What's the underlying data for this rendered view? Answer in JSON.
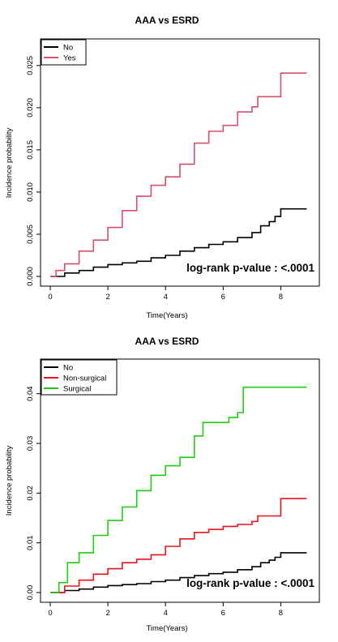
{
  "chart_data": [
    {
      "type": "line",
      "title": "AAA vs ESRD",
      "xlabel": "Time(Years)",
      "ylabel": "Incidence probability",
      "xlim": [
        0,
        9
      ],
      "ylim": [
        0,
        0.027
      ],
      "xticks": [
        0,
        2,
        4,
        6,
        8
      ],
      "xtick_labels": [
        "0",
        "2",
        "4",
        "6",
        "8"
      ],
      "yticks": [
        0,
        0.005,
        0.01,
        0.015,
        0.02,
        0.025
      ],
      "ytick_labels": [
        "0.000",
        "0.005",
        "0.010",
        "0.015",
        "0.020",
        "0.025"
      ],
      "legend_position": "top-left",
      "annotation": "log-rank p-value : <.0001",
      "series": [
        {
          "name": "No",
          "color": "#000000",
          "x": [
            0,
            0.5,
            1,
            1.5,
            2,
            2.5,
            3,
            3.5,
            4,
            4.5,
            5,
            5.5,
            6,
            6.5,
            7,
            7.3,
            7.6,
            7.8,
            8,
            8.9
          ],
          "y": [
            0,
            0.0004,
            0.0007,
            0.0011,
            0.0014,
            0.0016,
            0.0018,
            0.0022,
            0.0025,
            0.003,
            0.0034,
            0.0038,
            0.0041,
            0.0046,
            0.0052,
            0.006,
            0.0065,
            0.0071,
            0.008,
            0.008
          ]
        },
        {
          "name": "Yes",
          "color": "#d45068",
          "x": [
            0,
            0.2,
            0.5,
            1,
            1.5,
            2,
            2.5,
            3,
            3.5,
            4,
            4.5,
            5,
            5.5,
            6,
            6.5,
            7,
            7.2,
            7.9,
            8,
            8.9
          ],
          "y": [
            0,
            0.0007,
            0.0015,
            0.003,
            0.0043,
            0.0058,
            0.0078,
            0.0095,
            0.0108,
            0.0118,
            0.0133,
            0.0158,
            0.0172,
            0.0179,
            0.0195,
            0.0201,
            0.0213,
            0.0213,
            0.0241,
            0.0241
          ]
        }
      ]
    },
    {
      "type": "line",
      "title": "AAA vs ESRD",
      "xlabel": "Time(Years)",
      "ylabel": "Incidence probability",
      "xlim": [
        0,
        9
      ],
      "ylim": [
        0,
        0.045
      ],
      "xticks": [
        0,
        2,
        4,
        6,
        8
      ],
      "xtick_labels": [
        "0",
        "2",
        "4",
        "6",
        "8"
      ],
      "yticks": [
        0,
        0.01,
        0.02,
        0.03,
        0.04
      ],
      "ytick_labels": [
        "0.00",
        "0.01",
        "0.02",
        "0.03",
        "0.04"
      ],
      "legend_position": "top-left",
      "annotation": "log-rank p-value : <.0001",
      "series": [
        {
          "name": "No",
          "color": "#000000",
          "x": [
            0,
            0.5,
            1,
            1.5,
            2,
            2.5,
            3,
            3.5,
            4,
            4.5,
            5,
            5.5,
            6,
            6.5,
            7,
            7.3,
            7.6,
            7.8,
            8,
            8.9
          ],
          "y": [
            0,
            0.0004,
            0.0007,
            0.0011,
            0.0014,
            0.0016,
            0.0018,
            0.0022,
            0.0025,
            0.003,
            0.0034,
            0.0038,
            0.0041,
            0.0046,
            0.0052,
            0.006,
            0.0065,
            0.0071,
            0.008,
            0.008
          ]
        },
        {
          "name": "Non-surgical",
          "color": "#e8141c",
          "x": [
            0,
            0.5,
            1,
            1.5,
            2,
            2.5,
            3,
            3.5,
            4,
            4.5,
            5,
            5.5,
            6,
            6.5,
            7,
            7.2,
            7.9,
            8,
            8.9
          ],
          "y": [
            0,
            0.0013,
            0.0025,
            0.0037,
            0.0048,
            0.006,
            0.0067,
            0.0076,
            0.0093,
            0.0108,
            0.0121,
            0.0127,
            0.0133,
            0.0137,
            0.0143,
            0.0154,
            0.0154,
            0.0189,
            0.0189
          ]
        },
        {
          "name": "Surgical",
          "color": "#22cc14",
          "x": [
            0,
            0.3,
            0.6,
            1,
            1.5,
            2,
            2.5,
            3,
            3.5,
            4,
            4.5,
            5,
            5.3,
            6,
            6.2,
            6.5,
            6.7,
            8.9
          ],
          "y": [
            0,
            0.002,
            0.006,
            0.008,
            0.0115,
            0.0145,
            0.0172,
            0.0205,
            0.0236,
            0.0255,
            0.0272,
            0.0315,
            0.0342,
            0.0342,
            0.0352,
            0.0362,
            0.0413,
            0.0413
          ]
        }
      ]
    }
  ]
}
